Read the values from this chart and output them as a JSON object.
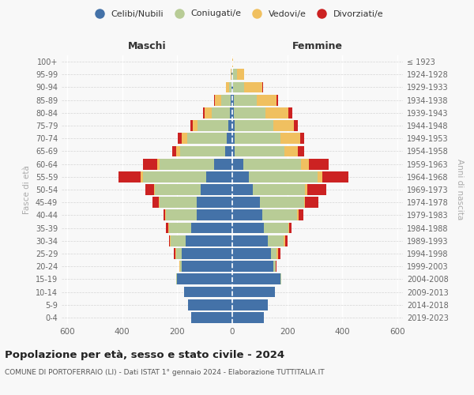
{
  "age_groups": [
    "0-4",
    "5-9",
    "10-14",
    "15-19",
    "20-24",
    "25-29",
    "30-34",
    "35-39",
    "40-44",
    "45-49",
    "50-54",
    "55-59",
    "60-64",
    "65-69",
    "70-74",
    "75-79",
    "80-84",
    "85-89",
    "90-94",
    "95-99",
    "100+"
  ],
  "birth_years": [
    "2019-2023",
    "2014-2018",
    "2009-2013",
    "2004-2008",
    "1999-2003",
    "1994-1998",
    "1989-1993",
    "1984-1988",
    "1979-1983",
    "1974-1978",
    "1969-1973",
    "1964-1968",
    "1959-1963",
    "1954-1958",
    "1949-1953",
    "1944-1948",
    "1939-1943",
    "1934-1938",
    "1929-1933",
    "1924-1928",
    "≤ 1923"
  ],
  "colors": {
    "celibi": "#4472a8",
    "coniugati": "#b8cc96",
    "vedovi": "#f0c060",
    "divorziati": "#cc2222"
  },
  "maschi": {
    "celibi": [
      150,
      160,
      175,
      200,
      185,
      185,
      170,
      150,
      130,
      130,
      115,
      95,
      65,
      25,
      20,
      15,
      10,
      5,
      3,
      2,
      1
    ],
    "coniugati": [
      0,
      0,
      0,
      3,
      5,
      20,
      55,
      80,
      110,
      135,
      165,
      230,
      200,
      165,
      145,
      110,
      65,
      35,
      8,
      2,
      0
    ],
    "vedovi": [
      0,
      0,
      0,
      0,
      3,
      3,
      3,
      3,
      3,
      3,
      5,
      8,
      8,
      14,
      18,
      18,
      25,
      22,
      12,
      3,
      0
    ],
    "divorziati": [
      0,
      0,
      0,
      0,
      0,
      3,
      3,
      8,
      8,
      22,
      30,
      80,
      50,
      15,
      15,
      10,
      5,
      3,
      0,
      0,
      0
    ]
  },
  "femmine": {
    "celibi": [
      115,
      130,
      155,
      175,
      150,
      140,
      130,
      115,
      108,
      100,
      75,
      60,
      40,
      8,
      8,
      8,
      5,
      5,
      2,
      1,
      0
    ],
    "coniugati": [
      0,
      0,
      0,
      4,
      8,
      22,
      58,
      88,
      128,
      160,
      190,
      250,
      210,
      182,
      168,
      142,
      115,
      85,
      40,
      15,
      1
    ],
    "vedovi": [
      0,
      0,
      0,
      0,
      0,
      4,
      4,
      4,
      4,
      5,
      8,
      18,
      28,
      48,
      72,
      75,
      85,
      72,
      68,
      28,
      1
    ],
    "divorziati": [
      0,
      0,
      0,
      0,
      4,
      8,
      8,
      8,
      18,
      48,
      70,
      95,
      72,
      22,
      13,
      13,
      14,
      5,
      2,
      0,
      0
    ]
  },
  "xlim": 620,
  "title": "Popolazione per età, sesso e stato civile - 2024",
  "subtitle": "COMUNE DI PORTOFERRAIO (LI) - Dati ISTAT 1° gennaio 2024 - Elaborazione TUTTITALIA.IT",
  "ylabel_left": "Fasce di età",
  "ylabel_right": "Anni di nascita",
  "xlabel_left": "Maschi",
  "xlabel_right": "Femmine",
  "legend_labels": [
    "Celibi/Nubili",
    "Coniugati/e",
    "Vedovi/e",
    "Divorziati/e"
  ],
  "bg_color": "#f8f8f8"
}
